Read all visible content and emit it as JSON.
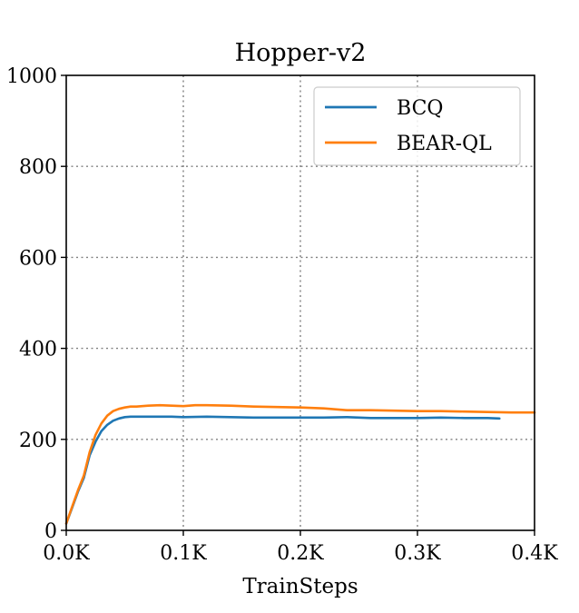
{
  "chart_data": {
    "type": "line",
    "title": "Hopper-v2",
    "xlabel": "TrainSteps",
    "ylabel": "",
    "xlim": [
      0,
      0.4
    ],
    "ylim": [
      0,
      1000
    ],
    "xticks": [
      0,
      0.1,
      0.2,
      0.3,
      0.4
    ],
    "xtick_labels": [
      "0.0K",
      "0.1K",
      "0.2K",
      "0.3K",
      "0.4K"
    ],
    "yticks": [
      0,
      200,
      400,
      600,
      800,
      1000
    ],
    "ytick_labels": [
      "0",
      "200",
      "400",
      "600",
      "800",
      "1000"
    ],
    "grid": true,
    "legend_position": "top-right",
    "series": [
      {
        "name": "BCQ",
        "color": "#1f77b4",
        "x": [
          0,
          0.005,
          0.01,
          0.015,
          0.02,
          0.025,
          0.03,
          0.035,
          0.04,
          0.045,
          0.05,
          0.055,
          0.06,
          0.07,
          0.08,
          0.09,
          0.1,
          0.12,
          0.14,
          0.16,
          0.18,
          0.2,
          0.22,
          0.24,
          0.26,
          0.28,
          0.3,
          0.32,
          0.34,
          0.36,
          0.37
        ],
        "y": [
          15,
          50,
          85,
          115,
          165,
          195,
          218,
          232,
          241,
          246,
          249,
          250,
          250,
          250,
          250,
          250,
          249,
          250,
          249,
          248,
          248,
          248,
          248,
          249,
          247,
          247,
          247,
          248,
          247,
          247,
          246
        ]
      },
      {
        "name": "BEAR-QL",
        "color": "#ff7f0e",
        "x": [
          0,
          0.005,
          0.01,
          0.015,
          0.02,
          0.025,
          0.03,
          0.035,
          0.04,
          0.045,
          0.05,
          0.055,
          0.06,
          0.07,
          0.08,
          0.09,
          0.1,
          0.11,
          0.12,
          0.14,
          0.16,
          0.18,
          0.2,
          0.22,
          0.24,
          0.26,
          0.28,
          0.3,
          0.32,
          0.34,
          0.36,
          0.38,
          0.4
        ],
        "y": [
          15,
          52,
          88,
          120,
          172,
          210,
          235,
          252,
          262,
          267,
          270,
          272,
          272,
          274,
          275,
          274,
          273,
          275,
          275,
          274,
          272,
          271,
          270,
          268,
          264,
          264,
          263,
          262,
          262,
          261,
          260,
          259,
          259
        ]
      }
    ]
  }
}
